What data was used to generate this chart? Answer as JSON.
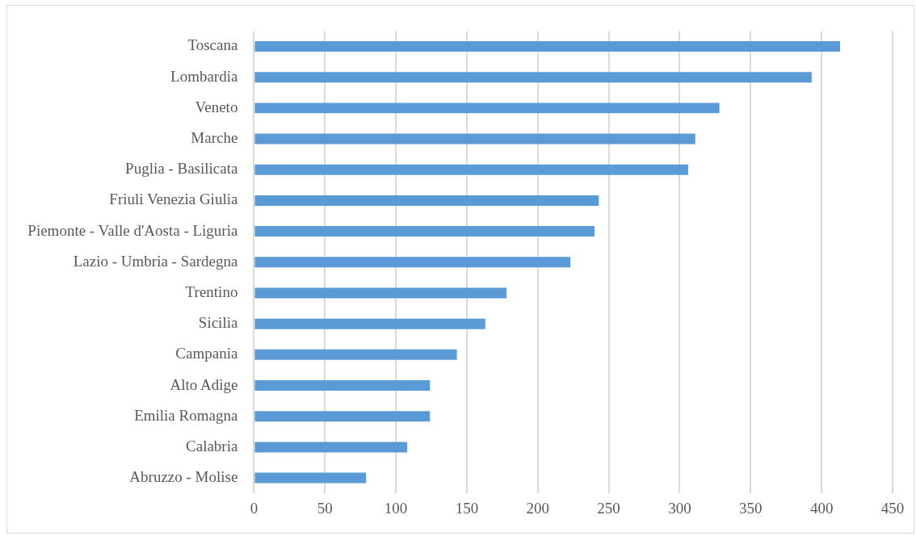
{
  "chart_data": {
    "type": "bar",
    "orientation": "horizontal",
    "categories": [
      "Toscana",
      "Lombardia",
      "Veneto",
      "Marche",
      "Puglia - Basilicata",
      "Friuli Venezia Giulia",
      "Piemonte - Valle d'Aosta - Liguria",
      "Lazio - Umbria - Sardegna",
      "Trentino",
      "Sicilia",
      "Campania",
      "Alto Adige",
      "Emilia Romagna",
      "Calabria",
      "Abruzzo - Molise"
    ],
    "values": [
      413,
      393,
      328,
      311,
      306,
      243,
      240,
      223,
      178,
      163,
      143,
      124,
      124,
      108,
      79
    ],
    "color": "#5b9bd5",
    "xlim": [
      0,
      450
    ],
    "xticks": [
      0,
      50,
      100,
      150,
      200,
      250,
      300,
      350,
      400,
      450
    ],
    "grid": "x",
    "legend": false
  }
}
